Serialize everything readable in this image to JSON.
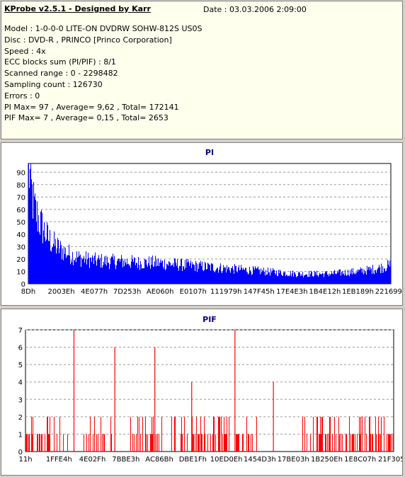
{
  "header": {
    "title": "KProbe v2.5.1 - Designed by Karr",
    "date": "Date : 03.03.2006 2:09:00"
  },
  "info_lines": [
    "Model : 1-0-0-0 LITE-ON DVDRW SOHW-812S  US0S",
    "Disc : DVD-R , PRINCO [Princo Corporation]",
    "Speed : 4x",
    "ECC blocks sum (PI/PIF) : 8/1",
    "Scanned range : 0 - 2298482",
    "Sampling count : 126730",
    "Errors : 0",
    "PI Max= 97 , Average= 9,62 , Total= 172141",
    "PIF Max= 7 , Average= 0,15 , Total= 2653"
  ],
  "colors": {
    "pi_bar": "#0000ff",
    "pif_bar": "#ff0000",
    "grid": "#999999",
    "title": "#000080"
  },
  "chart_data": [
    {
      "type": "area",
      "title": "PI",
      "grid": true,
      "ylim": [
        0,
        97
      ],
      "yticks": [
        0,
        10,
        20,
        30,
        40,
        50,
        60,
        70,
        80,
        90
      ],
      "xlim": [
        0,
        2298482
      ],
      "xticks": [
        "8Dh",
        "2003Eh",
        "4E077h",
        "7D253h",
        "AE060h",
        "E0107h",
        "111979h",
        "147F45h",
        "17E4E3h",
        "1B4E12h",
        "1EB189h",
        "221699h"
      ],
      "series": [
        {
          "x": [
            0,
            20000,
            40000,
            80000,
            120000,
            160000,
            200000,
            260000,
            320000,
            400000,
            500000,
            600000,
            700000,
            800000,
            900000,
            1000000,
            1100000,
            1200000,
            1300000,
            1400000,
            1500000,
            1600000,
            1700000,
            1800000,
            1900000,
            2000000,
            2100000,
            2200000,
            2298482
          ],
          "y": [
            97,
            75,
            60,
            48,
            38,
            32,
            28,
            24,
            21,
            19,
            18,
            18,
            17,
            17,
            16,
            15,
            14,
            13,
            12,
            11,
            10,
            9,
            8,
            8,
            8,
            9,
            10,
            12,
            15
          ]
        }
      ]
    },
    {
      "type": "bar",
      "title": "PIF",
      "grid": true,
      "ylim": [
        0,
        7
      ],
      "yticks": [
        0,
        1,
        2,
        3,
        4,
        5,
        6,
        7
      ],
      "xlim": [
        0,
        2298482
      ],
      "xticks": [
        "11h",
        "1FFE4h",
        "4E02Fh",
        "7BBE3h",
        "AC86Bh",
        "DBE1Fh",
        "10ED0Eh",
        "1454D3h",
        "17BE03h",
        "1B250Eh",
        "1E8C07h",
        "21F305h"
      ],
      "spikes": [
        {
          "x": 300000,
          "y": 7
        },
        {
          "x": 555000,
          "y": 6
        },
        {
          "x": 805000,
          "y": 6
        },
        {
          "x": 1035000,
          "y": 4
        },
        {
          "x": 1305000,
          "y": 7
        },
        {
          "x": 1545000,
          "y": 4
        }
      ],
      "series": [
        {
          "x": [
            0,
            150000,
            300000,
            450000,
            600000,
            750000,
            900000,
            1050000,
            1200000,
            1350000,
            1500000,
            1650000,
            1800000,
            1950000,
            2100000,
            2298482
          ],
          "y": [
            1,
            1,
            0,
            1,
            0,
            1,
            0,
            1,
            1,
            1,
            0,
            0,
            1,
            1,
            1,
            1
          ]
        }
      ]
    }
  ]
}
